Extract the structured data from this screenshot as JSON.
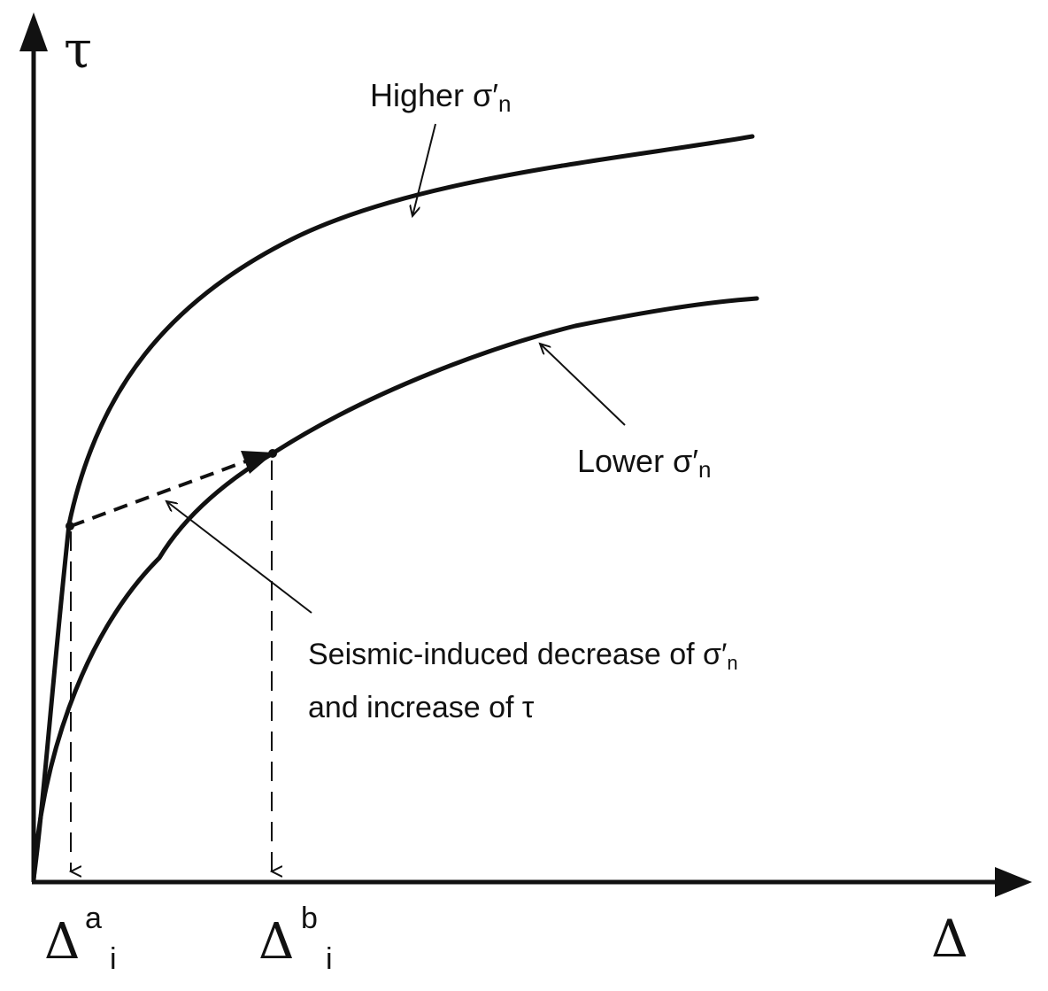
{
  "diagram": {
    "axes": {
      "y_symbol": "τ",
      "x_symbol": "Δ"
    },
    "curves": {
      "higher": {
        "label": "Higher σ′",
        "subscript": "n"
      },
      "lower": {
        "label": "Lower σ′",
        "subscript": "n"
      }
    },
    "markers": {
      "a": {
        "base": "Δ",
        "sup": "a",
        "sub": "i"
      },
      "b": {
        "base": "Δ",
        "sup": "b",
        "sub": "i"
      }
    },
    "annotation": {
      "line1_text": "Seismic-induced decrease of σ′",
      "line1_sub": "n",
      "line2_text": "and increase of τ"
    },
    "colors": {
      "ink": "#111111",
      "background": "#ffffff"
    }
  }
}
